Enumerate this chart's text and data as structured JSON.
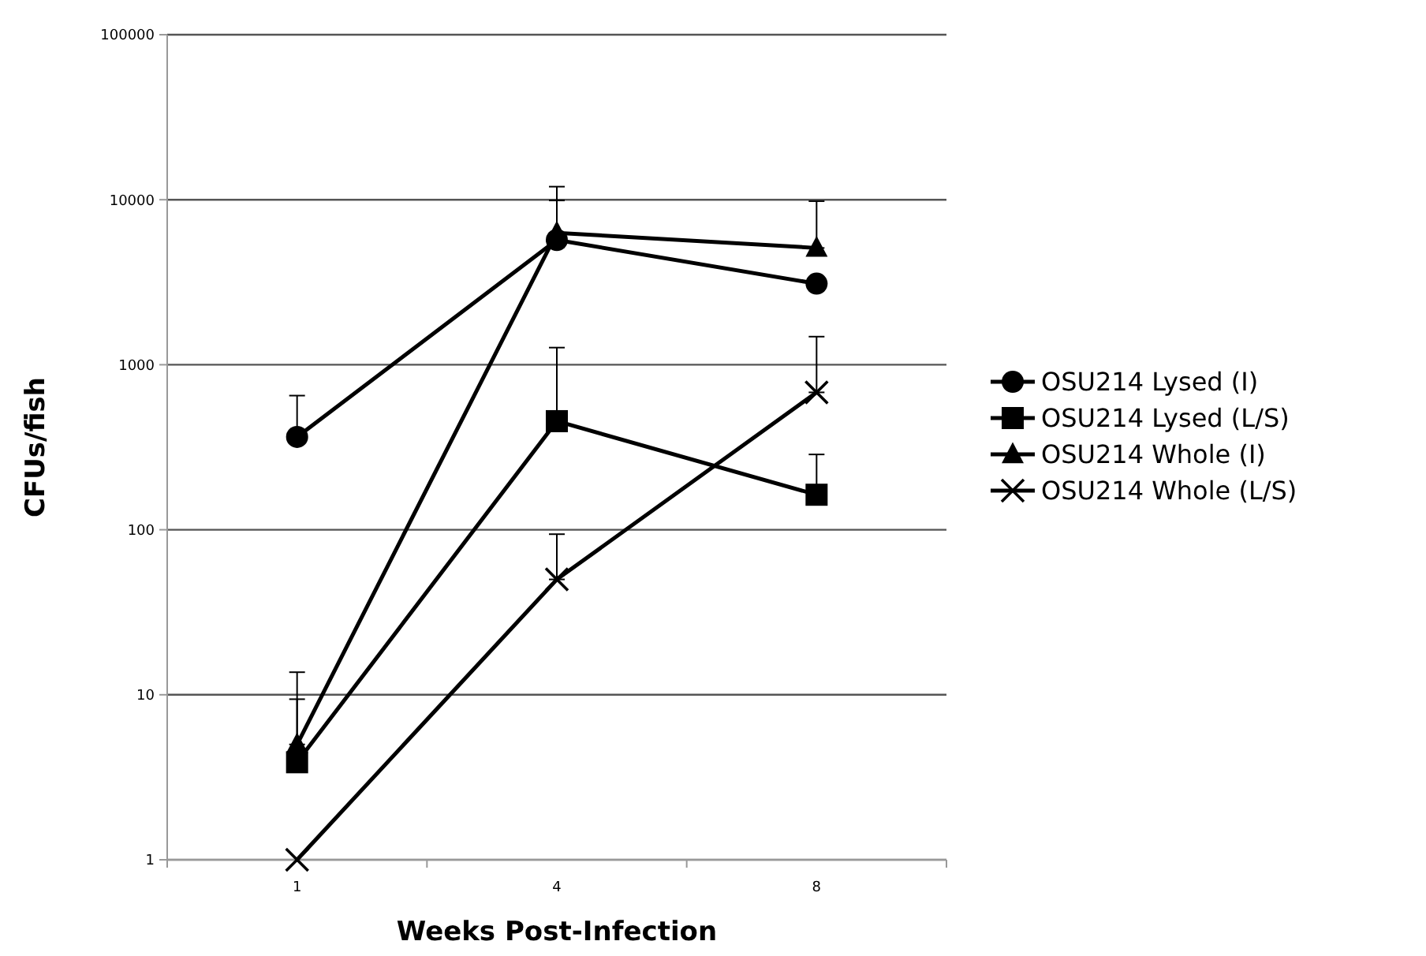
{
  "chart_data": {
    "type": "line",
    "xlabel": "Weeks Post-Infection",
    "ylabel": "CFUs/fish",
    "categories": [
      "1",
      "4",
      "8"
    ],
    "log": "y",
    "ylim": [
      1,
      100000
    ],
    "yticks": [
      1,
      10,
      100,
      1000,
      10000,
      100000
    ],
    "grid": "y",
    "legend": "right",
    "line_style": "solid",
    "series": [
      {
        "name": "OSU214 Lysed (I)",
        "color": "#000000",
        "marker": "circle",
        "values": [
          365,
          5700,
          3100
        ],
        "errors": [
          [
            365,
            650
          ],
          [
            5700,
            9900
          ],
          null
        ]
      },
      {
        "name": "OSU214 Lysed (L/S)",
        "color": "#000000",
        "marker": "square",
        "values": [
          3.9,
          455,
          163
        ],
        "errors": [
          [
            3.9,
            9.4
          ],
          [
            455,
            1270
          ],
          [
            163,
            286
          ]
        ]
      },
      {
        "name": "OSU214 Whole (I)",
        "color": "#000000",
        "marker": "triangle",
        "values": [
          5,
          6300,
          5100
        ],
        "errors": [
          [
            5,
            13.7
          ],
          [
            6300,
            12000
          ],
          [
            5100,
            9800
          ]
        ]
      },
      {
        "name": "OSU214 Whole (L/S)",
        "color": "#000000",
        "marker": "cross",
        "values": [
          1,
          50,
          680
        ],
        "errors": [
          null,
          [
            50,
            94
          ],
          [
            680,
            1480
          ]
        ]
      }
    ]
  }
}
